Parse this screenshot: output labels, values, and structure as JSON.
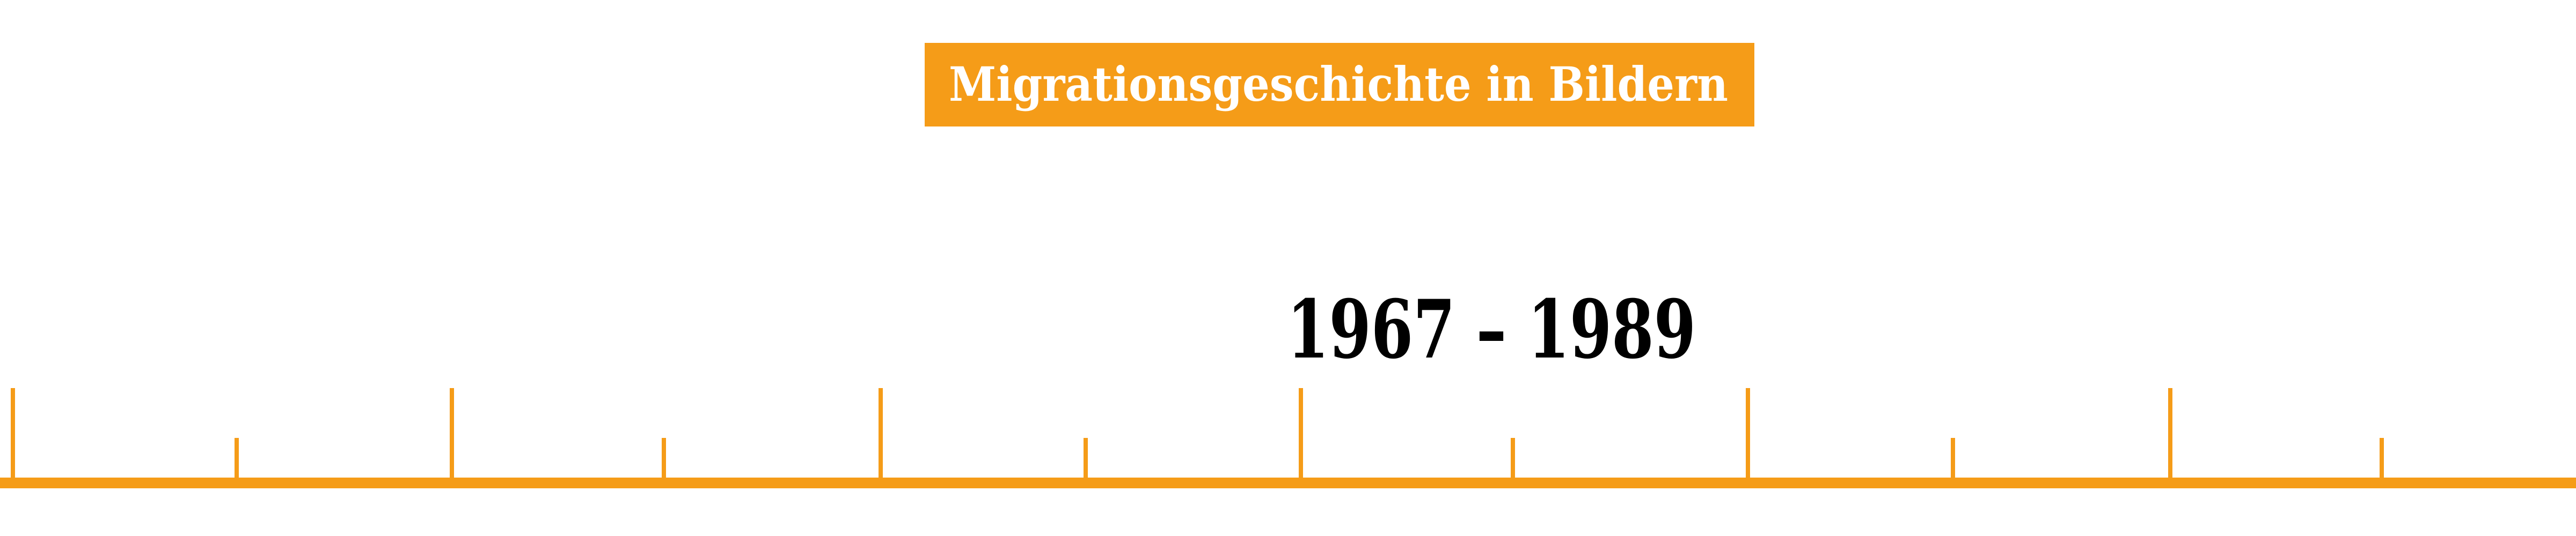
{
  "header": {
    "title": "Migrationsgeschichte in Bildern"
  },
  "period": {
    "label": "1967 – 1989"
  },
  "timeline": {
    "tick_count": 12,
    "tick_pattern": [
      "tall",
      "short",
      "tall",
      "short",
      "tall",
      "short",
      "tall",
      "short",
      "tall",
      "short",
      "tall",
      "short"
    ]
  },
  "colors": {
    "accent": "#F59C18",
    "title_text": "#FFFFFF",
    "period_text": "#000000",
    "background": "#FFFFFF"
  }
}
